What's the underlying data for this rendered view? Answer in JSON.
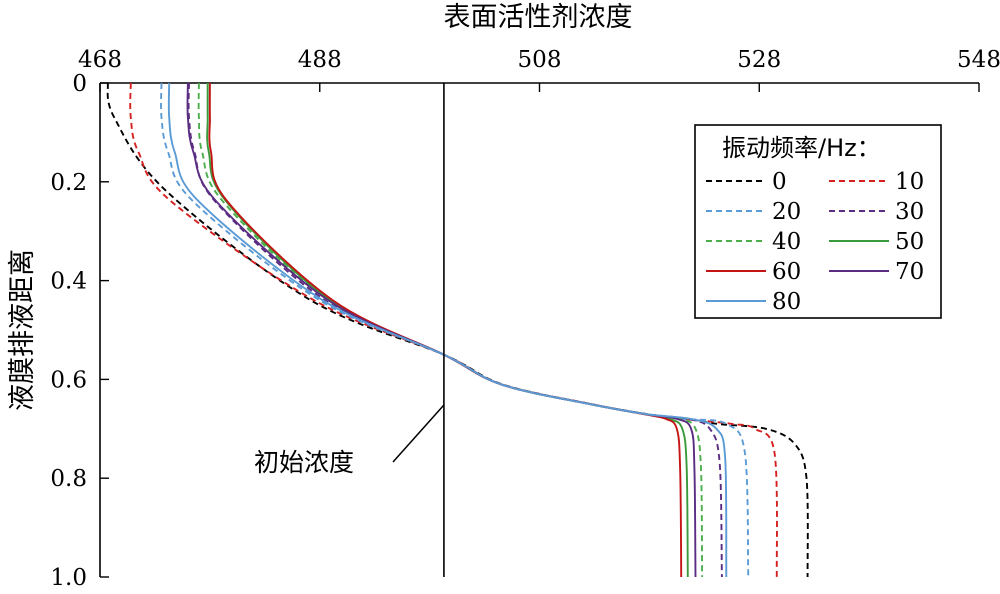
{
  "chart_data": {
    "type": "line",
    "title": "",
    "xlabel": "表面活性剂浓度",
    "ylabel": "液膜排液距离",
    "xlim": [
      468,
      548
    ],
    "ylim": [
      0,
      1.0
    ],
    "x_axis_position": "top",
    "y_axis_inverted": true,
    "x_ticks": [
      468,
      488,
      508,
      528,
      548
    ],
    "y_ticks": [
      0,
      0.2,
      0.4,
      0.6,
      0.8,
      1.0
    ],
    "x_tick_labels": [
      "468",
      "488",
      "508",
      "528",
      "548"
    ],
    "y_tick_labels": [
      "0",
      "0.2",
      "0.4",
      "0.6",
      "0.8",
      "1.0"
    ],
    "grid": false,
    "legend_title": "振动频率/Hz：",
    "legend_position": "top-right",
    "initial_concentration": {
      "x": 499.3,
      "label": "初始浓度"
    },
    "series": [
      {
        "name": "0",
        "color": "#000000",
        "dash": true,
        "x": [
          468.7,
          469.3,
          474.1,
          487.2,
          499.3,
          504.6,
          512.7,
          517.7,
          521.5,
          524.2,
          528.6,
          531.2,
          532.3,
          532.4
        ],
        "y": [
          0,
          0.07,
          0.22,
          0.44,
          0.55,
          0.61,
          0.65,
          0.67,
          0.68,
          0.69,
          0.7,
          0.73,
          0.8,
          1.0
        ]
      },
      {
        "name": "10",
        "color": "#d62020",
        "dash": true,
        "x": [
          470.8,
          470.8,
          471.5,
          474.5,
          487.5,
          499.3,
          504.5,
          512.7,
          517.5,
          521.2,
          525.5,
          527.6,
          529.4,
          529.6
        ],
        "y": [
          0,
          0.07,
          0.14,
          0.24,
          0.44,
          0.55,
          0.61,
          0.65,
          0.67,
          0.68,
          0.69,
          0.7,
          0.75,
          1.0
        ]
      },
      {
        "name": "20",
        "color": "#5b9bd5",
        "dash": true,
        "x": [
          473.6,
          473.6,
          474.2,
          476.5,
          488.0,
          499.3,
          504.5,
          512.6,
          517.6,
          521.3,
          525.0,
          526.7,
          527.0
        ],
        "y": [
          0,
          0.07,
          0.14,
          0.24,
          0.44,
          0.55,
          0.61,
          0.65,
          0.67,
          0.68,
          0.69,
          0.75,
          1.0
        ]
      },
      {
        "name": "30",
        "color": "#5a2c82",
        "dash": true,
        "x": [
          476.1,
          476.1,
          476.6,
          478.5,
          488.5,
          499.3,
          504.5,
          512.6,
          517.6,
          521.5,
          523.5,
          524.4,
          524.6
        ],
        "y": [
          0,
          0.07,
          0.14,
          0.24,
          0.44,
          0.55,
          0.61,
          0.65,
          0.67,
          0.68,
          0.7,
          0.77,
          1.0
        ]
      },
      {
        "name": "40",
        "color": "#4cae4c",
        "dash": true,
        "x": [
          477.0,
          477.0,
          477.3,
          479.2,
          488.8,
          499.3,
          504.5,
          512.6,
          517.6,
          520.8,
          522.2,
          522.7,
          522.8
        ],
        "y": [
          0,
          0.07,
          0.14,
          0.24,
          0.44,
          0.55,
          0.61,
          0.65,
          0.67,
          0.68,
          0.7,
          0.78,
          1.0
        ]
      },
      {
        "name": "50",
        "color": "#3a9a3a",
        "dash": false,
        "x": [
          477.8,
          477.8,
          477.9,
          479.5,
          489.0,
          499.3,
          504.5,
          512.6,
          517.5,
          519.8,
          521.0,
          521.4,
          521.5
        ],
        "y": [
          0,
          0.07,
          0.14,
          0.24,
          0.44,
          0.55,
          0.61,
          0.65,
          0.67,
          0.68,
          0.7,
          0.78,
          1.0
        ]
      },
      {
        "name": "60",
        "color": "#c41414",
        "dash": false,
        "x": [
          478.0,
          478.0,
          478.1,
          479.6,
          489.2,
          499.3,
          504.5,
          512.6,
          517.4,
          519.5,
          520.5,
          520.8,
          520.9
        ],
        "y": [
          0,
          0.07,
          0.14,
          0.24,
          0.44,
          0.55,
          0.61,
          0.65,
          0.67,
          0.68,
          0.7,
          0.78,
          1.0
        ]
      },
      {
        "name": "70",
        "color": "#5a2c82",
        "dash": false,
        "x": [
          476.0,
          476.0,
          476.5,
          478.6,
          488.8,
          499.3,
          504.5,
          512.6,
          517.6,
          520.5,
          521.8,
          522.1,
          522.2
        ],
        "y": [
          0,
          0.07,
          0.14,
          0.24,
          0.44,
          0.55,
          0.61,
          0.65,
          0.67,
          0.68,
          0.7,
          0.78,
          1.0
        ]
      },
      {
        "name": "80",
        "color": "#5b9bd5",
        "dash": false,
        "x": [
          474.3,
          474.3,
          474.8,
          477.0,
          488.3,
          499.3,
          504.5,
          512.6,
          517.6,
          521.8,
          524.1,
          524.9,
          525.0
        ],
        "y": [
          0,
          0.07,
          0.14,
          0.24,
          0.44,
          0.55,
          0.61,
          0.65,
          0.67,
          0.68,
          0.7,
          0.76,
          1.0
        ]
      }
    ]
  }
}
